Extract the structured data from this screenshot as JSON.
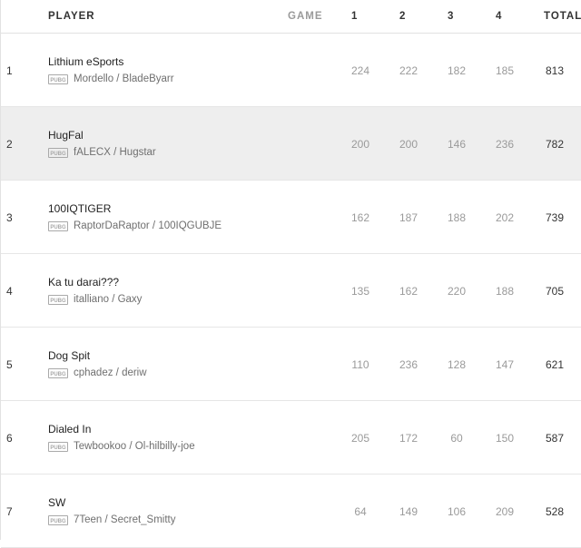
{
  "header": {
    "player": "PLAYER",
    "game": "GAME",
    "games": [
      "1",
      "2",
      "3",
      "4"
    ],
    "total": "TOTAL"
  },
  "rows": [
    {
      "rank": "1",
      "team": "Lithium eSports",
      "players": "Mordello / BladeByarr",
      "scores": [
        "224",
        "222",
        "182",
        "185"
      ],
      "total": "813",
      "highlighted": false
    },
    {
      "rank": "2",
      "team": "HugFal",
      "players": "fALECX / Hugstar",
      "scores": [
        "200",
        "200",
        "146",
        "236"
      ],
      "total": "782",
      "highlighted": true
    },
    {
      "rank": "3",
      "team": "100IQTIGER",
      "players": "RaptorDaRaptor / 100IQGUBJE",
      "scores": [
        "162",
        "187",
        "188",
        "202"
      ],
      "total": "739",
      "highlighted": false
    },
    {
      "rank": "4",
      "team": "Ka tu darai???",
      "players": "italliano / Gaxy",
      "scores": [
        "135",
        "162",
        "220",
        "188"
      ],
      "total": "705",
      "highlighted": false
    },
    {
      "rank": "5",
      "team": "Dog Spit",
      "players": "cphadez / deriw",
      "scores": [
        "110",
        "236",
        "128",
        "147"
      ],
      "total": "621",
      "highlighted": false
    },
    {
      "rank": "6",
      "team": "Dialed In",
      "players": "Tewbookoo / Ol-hilbilly-joe",
      "scores": [
        "205",
        "172",
        "60",
        "150"
      ],
      "total": "587",
      "highlighted": false
    },
    {
      "rank": "7",
      "team": "SW",
      "players": "7Teen / Secret_Smitty",
      "scores": [
        "64",
        "149",
        "106",
        "209"
      ],
      "total": "528",
      "highlighted": false
    }
  ],
  "icons": {
    "platform": "pubg-icon"
  },
  "colors": {
    "highlight_row": "#eeeeee",
    "muted_text": "#9a9a9a"
  }
}
